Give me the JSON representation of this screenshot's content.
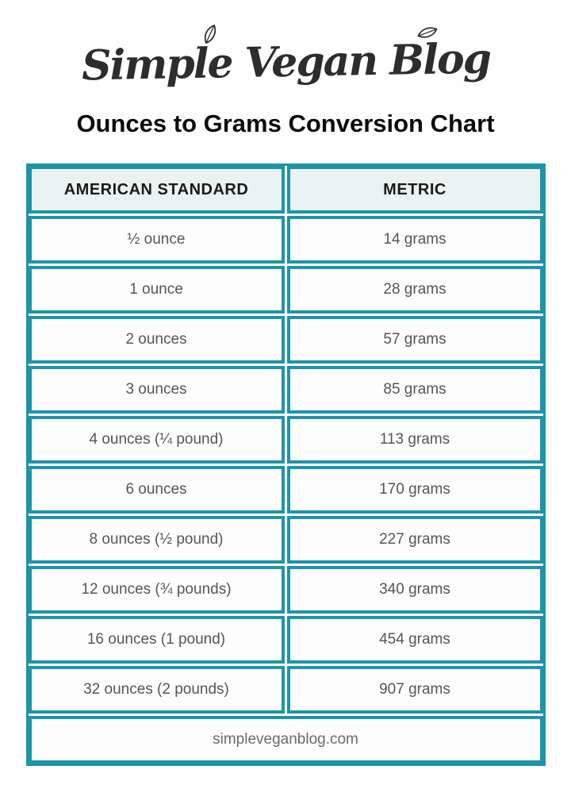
{
  "logo": {
    "text": "Simple Vegan Blog"
  },
  "title": "Ounces to Grams Conversion Chart",
  "table": {
    "border_color": "#1e94a9",
    "header_background": "#e9f4f2",
    "footer": "simpleveganblog.com"
  },
  "chart_data": {
    "type": "table",
    "title": "Ounces to Grams Conversion Chart",
    "columns": [
      "AMERICAN STANDARD",
      "METRIC"
    ],
    "rows": [
      [
        "½ ounce",
        "14 grams"
      ],
      [
        "1 ounce",
        "28 grams"
      ],
      [
        "2 ounces",
        "57 grams"
      ],
      [
        "3 ounces",
        "85 grams"
      ],
      [
        "4 ounces (¼ pound)",
        "113 grams"
      ],
      [
        "6 ounces",
        "170 grams"
      ],
      [
        "8 ounces (½ pound)",
        "227 grams"
      ],
      [
        "12 ounces (¾ pounds)",
        "340 grams"
      ],
      [
        "16 ounces (1 pound)",
        "454 grams"
      ],
      [
        "32 ounces (2 pounds)",
        "907 grams"
      ]
    ]
  }
}
